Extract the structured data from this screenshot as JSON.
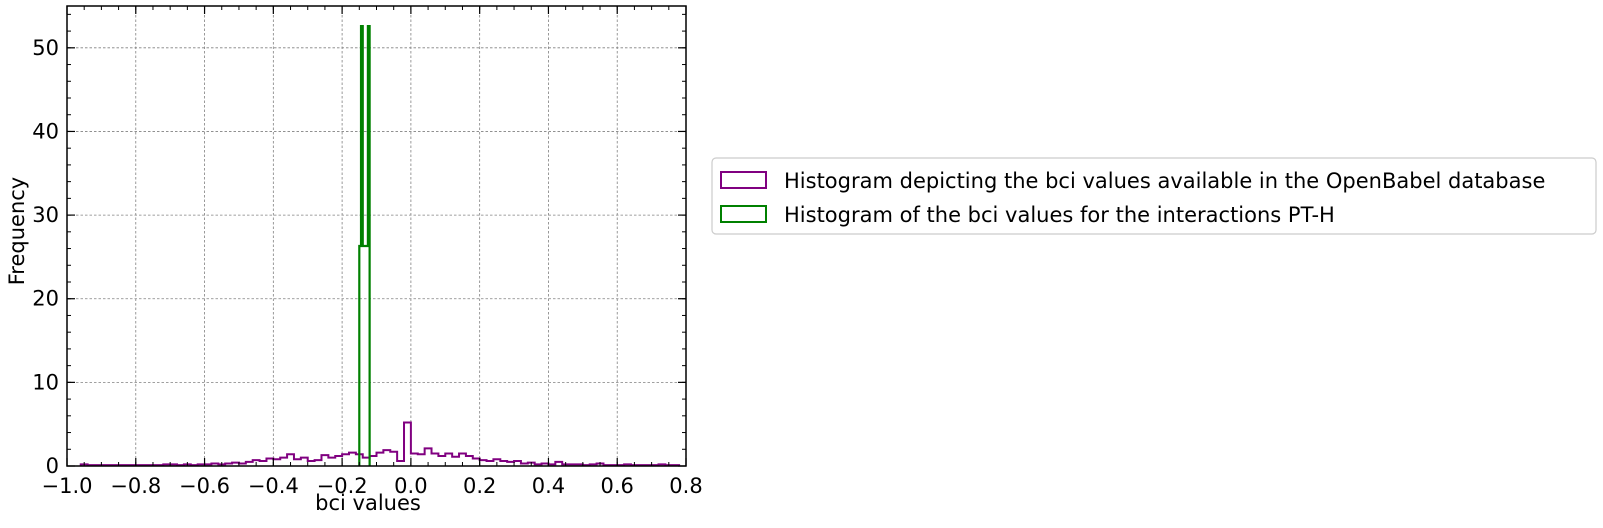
{
  "chart_data": {
    "type": "histogram",
    "xlabel": "bci values",
    "ylabel": "Frequency",
    "xlim": [
      -1.0,
      0.8
    ],
    "ylim": [
      0,
      55
    ],
    "xticks": [
      -1.0,
      -0.8,
      -0.6,
      -0.4,
      -0.2,
      0.0,
      0.2,
      0.4,
      0.6,
      0.8
    ],
    "xtick_labels": [
      "−1.0",
      "−0.8",
      "−0.6",
      "−0.4",
      "−0.2",
      "0.0",
      "0.2",
      "0.4",
      "0.6",
      "0.8"
    ],
    "yticks": [
      0,
      10,
      20,
      30,
      40,
      50
    ],
    "ytick_labels": [
      "0",
      "10",
      "20",
      "30",
      "40",
      "50"
    ],
    "grid": true,
    "legend_position": "right-outside",
    "series": [
      {
        "name": "Histogram depicting the bci values available in the OpenBabel database",
        "color": "#800080",
        "style": "step",
        "bin_start": -0.96,
        "bin_width": 0.02,
        "counts": [
          0.2,
          0.1,
          0.1,
          0.1,
          0.1,
          0.1,
          0.1,
          0.1,
          0.1,
          0.1,
          0.1,
          0.1,
          0.2,
          0.2,
          0.1,
          0.2,
          0.1,
          0.2,
          0.2,
          0.3,
          0.2,
          0.3,
          0.4,
          0.3,
          0.5,
          0.7,
          0.6,
          0.9,
          0.8,
          1.0,
          1.4,
          0.8,
          1.0,
          0.6,
          0.7,
          1.3,
          1.0,
          1.2,
          1.4,
          1.6,
          1.4,
          1.0,
          1.2,
          1.6,
          1.9,
          1.7,
          0.6,
          5.2,
          1.5,
          1.4,
          2.1,
          1.5,
          1.2,
          1.5,
          1.1,
          1.5,
          1.2,
          0.9,
          0.7,
          0.6,
          0.8,
          0.6,
          0.5,
          0.6,
          0.3,
          0.4,
          0.2,
          0.3,
          0.2,
          0.5,
          0.2,
          0.2,
          0.2,
          0.1,
          0.2,
          0.3,
          0.1,
          0.1,
          0.1,
          0.2,
          0.1,
          0.1,
          0.1,
          0.1,
          0.2,
          0.1,
          0.1
        ]
      },
      {
        "name": "Histogram of the bci values for the interactions PT-H",
        "color": "#008000",
        "style": "step",
        "bins": [
          {
            "x0": -0.15,
            "x1": -0.145,
            "count": 26.3
          },
          {
            "x0": -0.145,
            "x1": -0.14,
            "count": 52.6
          },
          {
            "x0": -0.14,
            "x1": -0.13,
            "count": 26.3
          },
          {
            "x0": -0.13,
            "x1": -0.125,
            "count": 26.3
          },
          {
            "x0": -0.125,
            "x1": -0.12,
            "count": 52.6
          }
        ]
      }
    ]
  }
}
